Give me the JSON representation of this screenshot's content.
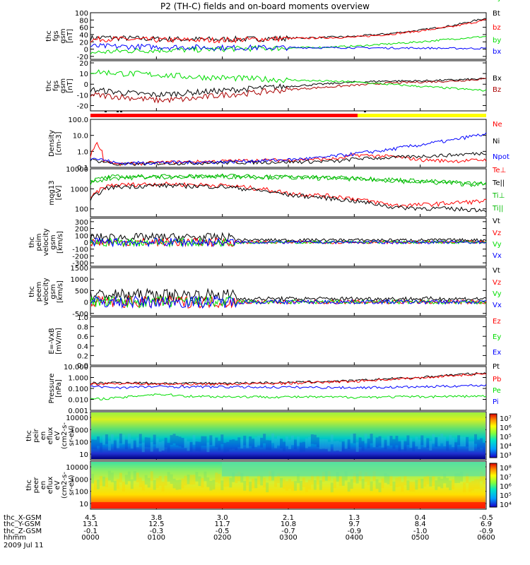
{
  "title": "P2 (TH-C) fields and on-board moments overview",
  "chart_data": [
    {
      "type": "line",
      "panel": "fgs",
      "ylabel": [
        "thc",
        "fgs",
        "gsm",
        "[nT]"
      ],
      "yticks": [
        100,
        80,
        60,
        40,
        20,
        0,
        -20
      ],
      "ylim": [
        -28,
        100
      ],
      "series": [
        {
          "name": "Bt",
          "color": "#000000",
          "x": [
            0,
            0.2,
            0.5,
            1,
            1.5,
            2,
            2.5,
            3,
            3.5,
            4,
            4.5,
            5,
            5.5,
            6
          ],
          "y": [
            30,
            32,
            30,
            28,
            27,
            27,
            28,
            30,
            32,
            35,
            42,
            52,
            65,
            85
          ]
        },
        {
          "name": "bz",
          "color": "#ff0000",
          "x": [
            0,
            0.2,
            0.5,
            1,
            1.5,
            2,
            2.5,
            3,
            3.5,
            4,
            4.5,
            5,
            5.5,
            6
          ],
          "y": [
            25,
            28,
            27,
            25,
            25,
            25,
            27,
            29,
            31,
            33,
            40,
            50,
            62,
            80
          ]
        },
        {
          "name": "by",
          "color": "#00dd00",
          "x": [
            0,
            0.2,
            0.5,
            1,
            1.5,
            2,
            2.5,
            3,
            3.5,
            4,
            4.5,
            5,
            5.5,
            6
          ],
          "y": [
            -10,
            -8,
            -5,
            -3,
            -2,
            0,
            2,
            3,
            5,
            8,
            14,
            20,
            28,
            35
          ]
        },
        {
          "name": "bx",
          "color": "#0000ff",
          "x": [
            0,
            0.5,
            1,
            1.5,
            2,
            2.5,
            3,
            3.5,
            4,
            4.5,
            5,
            5.5,
            6
          ],
          "y": [
            8,
            7,
            6,
            5,
            4,
            4,
            4,
            4,
            4,
            3,
            3,
            2,
            2
          ]
        }
      ]
    },
    {
      "type": "line",
      "panel": "fgs-dsl",
      "ylabel": [
        "thc",
        "fgs",
        "gsm",
        "[nT]"
      ],
      "yticks": [
        20,
        10,
        0,
        -10,
        -20
      ],
      "ylim": [
        -25,
        22
      ],
      "series": [
        {
          "name": "Bx",
          "color": "#000000",
          "x": [
            0,
            0.5,
            1,
            1.5,
            2,
            2.5,
            3,
            3.5,
            4,
            4.5,
            5,
            5.5,
            6
          ],
          "y": [
            -5,
            -8,
            -10,
            -8,
            -6,
            -4,
            -2,
            0,
            2,
            3,
            3,
            4,
            5
          ]
        },
        {
          "name": "Bz",
          "color": "#aa0000",
          "x": [
            0,
            0.5,
            1,
            1.5,
            2,
            2.5,
            3,
            3.5,
            4,
            4.5,
            5,
            5.5,
            6
          ],
          "y": [
            -10,
            -12,
            -15,
            -14,
            -10,
            -8,
            -5,
            -3,
            -1,
            1,
            2,
            3,
            5
          ]
        },
        {
          "name": "By",
          "color": "#00dd00",
          "x": [
            0,
            0.5,
            1,
            1.5,
            2,
            2.5,
            3,
            3.5,
            4,
            4.5,
            5,
            5.5,
            6
          ],
          "y": [
            12,
            10,
            9,
            7,
            6,
            5,
            4,
            3,
            2,
            0,
            -2,
            -4,
            -6
          ]
        }
      ]
    },
    {
      "type": "line",
      "panel": "density",
      "ylabel": [
        "Density",
        "[cm-3]"
      ],
      "yticks": [
        "100.0",
        "10.0",
        "1.0",
        "0.1"
      ],
      "scale": "log",
      "ylim": [
        0.1,
        100
      ],
      "series": [
        {
          "name": "Ne",
          "color": "#ff0000",
          "x": [
            0,
            0.1,
            0.2,
            0.4,
            1,
            2,
            3,
            3.8,
            4,
            4.5,
            5,
            5.5,
            6
          ],
          "y": [
            0.5,
            3,
            0.3,
            0.15,
            0.2,
            0.25,
            0.3,
            0.35,
            0.6,
            0.5,
            0.3,
            0.25,
            0.3
          ]
        },
        {
          "name": "Ni",
          "color": "#000000",
          "x": [
            0,
            0.4,
            1,
            2,
            3,
            3.8,
            4,
            4.5,
            5,
            5.5,
            6
          ],
          "y": [
            0.3,
            0.15,
            0.18,
            0.2,
            0.22,
            0.25,
            0.35,
            0.4,
            0.5,
            0.6,
            0.8
          ]
        },
        {
          "name": "Npot",
          "color": "#0000ff",
          "x": [
            0,
            0.4,
            1,
            2,
            3,
            3.5,
            4,
            4.5,
            5,
            5.5,
            6
          ],
          "y": [
            0.4,
            0.18,
            0.2,
            0.22,
            0.3,
            0.4,
            0.7,
            1.2,
            2.5,
            5,
            12
          ]
        }
      ]
    },
    {
      "type": "line",
      "panel": "temperature",
      "ylabel": [
        "mqg13",
        "[eV]"
      ],
      "yticks": [
        "10000",
        "1000",
        "100"
      ],
      "scale": "log",
      "ylim": [
        40,
        10000
      ],
      "series": [
        {
          "name": "Te⊥",
          "color": "#ff0000",
          "x": [
            0,
            0.3,
            1,
            2,
            2.6,
            3,
            3.8,
            4.2,
            4.6,
            5,
            5.5,
            6
          ],
          "y": [
            300,
            1500,
            1800,
            1500,
            1000,
            600,
            400,
            250,
            150,
            160,
            200,
            250
          ]
        },
        {
          "name": "Te||",
          "color": "#000000",
          "x": [
            0,
            0.3,
            1,
            2,
            2.6,
            3,
            3.8,
            4.2,
            4.6,
            5,
            5.5,
            6
          ],
          "y": [
            250,
            1200,
            1500,
            1300,
            800,
            500,
            300,
            200,
            120,
            110,
            100,
            90
          ]
        },
        {
          "name": "Ti⊥",
          "color": "#00bb00",
          "x": [
            0,
            0.3,
            1,
            2,
            3,
            4,
            5,
            6
          ],
          "y": [
            2500,
            4000,
            4200,
            4500,
            4000,
            3500,
            2500,
            1800
          ]
        },
        {
          "name": "Ti||",
          "color": "#00bb00",
          "x": [
            0,
            0.3,
            1,
            2,
            3,
            4,
            5,
            6
          ],
          "y": [
            2000,
            3500,
            4000,
            4200,
            3800,
            3200,
            2200,
            1600
          ]
        }
      ]
    },
    {
      "type": "line",
      "panel": "peim-velocity",
      "ylabel": [
        "thc",
        "peim",
        "velocity",
        "gsm",
        "[km/s]"
      ],
      "yticks": [
        300,
        200,
        100,
        0,
        -100,
        -200,
        -300
      ],
      "ylim": [
        -350,
        350
      ],
      "series": [
        {
          "name": "Vt",
          "color": "#000000"
        },
        {
          "name": "Vz",
          "color": "#ff0000"
        },
        {
          "name": "Vy",
          "color": "#00dd00"
        },
        {
          "name": "Vx",
          "color": "#0000ff"
        }
      ]
    },
    {
      "type": "line",
      "panel": "peem-velocity",
      "ylabel": [
        "thc",
        "peem",
        "velocity",
        "gsm",
        "[km/s]"
      ],
      "yticks": [
        1500,
        1000,
        500,
        0,
        -500
      ],
      "ylim": [
        -600,
        1500
      ],
      "series": [
        {
          "name": "Vt",
          "color": "#000000"
        },
        {
          "name": "Vz",
          "color": "#ff0000"
        },
        {
          "name": "Vy",
          "color": "#00dd00"
        },
        {
          "name": "Vx",
          "color": "#0000ff"
        }
      ]
    },
    {
      "type": "line",
      "panel": "efield",
      "ylabel": [
        "E=-VxB",
        "[mV/m]"
      ],
      "yticks": [
        "1.0",
        "0.8",
        "0.6",
        "0.4",
        "0.2",
        "0.0"
      ],
      "ylim": [
        0,
        1
      ],
      "series": [
        {
          "name": "Ez",
          "color": "#ff0000"
        },
        {
          "name": "Ey",
          "color": "#00dd00"
        },
        {
          "name": "Ex",
          "color": "#0000ff"
        }
      ]
    },
    {
      "type": "line",
      "panel": "pressure",
      "ylabel": [
        "Pressure",
        "[nPa]"
      ],
      "yticks": [
        "10.000",
        "1.000",
        "0.100",
        "0.010",
        "0.001"
      ],
      "scale": "log",
      "ylim": [
        0.001,
        10
      ],
      "series": [
        {
          "name": "Pt",
          "color": "#000000",
          "x": [
            0,
            0.5,
            1,
            2,
            3,
            4,
            5,
            6
          ],
          "y": [
            0.3,
            0.35,
            0.3,
            0.3,
            0.35,
            0.5,
            1,
            2.5
          ]
        },
        {
          "name": "Pb",
          "color": "#ff0000",
          "x": [
            0,
            0.5,
            1,
            2,
            3,
            4,
            5,
            6
          ],
          "y": [
            0.25,
            0.3,
            0.25,
            0.25,
            0.3,
            0.45,
            0.9,
            2.2
          ]
        },
        {
          "name": "Pe",
          "color": "#00dd00",
          "x": [
            0,
            0.5,
            1,
            1.5,
            2,
            3,
            4,
            5,
            6
          ],
          "y": [
            0.01,
            0.015,
            0.03,
            0.02,
            0.018,
            0.017,
            0.016,
            0.018,
            0.02
          ]
        },
        {
          "name": "Pi",
          "color": "#0000ff",
          "x": [
            0,
            0.5,
            1,
            2,
            3,
            4,
            5,
            6
          ],
          "y": [
            0.15,
            0.12,
            0.15,
            0.14,
            0.13,
            0.12,
            0.14,
            0.2
          ]
        }
      ]
    },
    {
      "type": "heatmap",
      "panel": "peir",
      "ylabel": [
        "thc",
        "peir",
        "en",
        "eflux",
        "eV",
        "(cm2-s-",
        "sr-eV)"
      ],
      "yticks": [
        "10000",
        "1000",
        "100",
        "10"
      ],
      "scale": "log",
      "colorbar_ticks": [
        "10⁷",
        "10⁶",
        "10⁵",
        "10⁴",
        "10³"
      ]
    },
    {
      "type": "heatmap",
      "panel": "peer",
      "ylabel": [
        "thc",
        "peer",
        "en",
        "eflux",
        "eV",
        "(cm2-s-",
        "sr-eV)"
      ],
      "yticks": [
        "10000",
        "1000",
        "100",
        "10"
      ],
      "scale": "log",
      "colorbar_ticks": [
        "10⁸",
        "10⁷",
        "10⁶",
        "10⁵",
        "10⁴"
      ]
    }
  ],
  "xaxis": {
    "rows": [
      {
        "label": "thc_X-GSM",
        "values": [
          "4.5",
          "3.8",
          "3.0",
          "2.1",
          "1.3",
          "0.4",
          "-0.5"
        ]
      },
      {
        "label": "thc_Y-GSM",
        "values": [
          "13.1",
          "12.5",
          "11.7",
          "10.8",
          "9.7",
          "8.4",
          "6.9"
        ]
      },
      {
        "label": "thc_Z-GSM",
        "values": [
          "-0.1",
          "-0.3",
          "-0.5",
          "-0.7",
          "-0.9",
          "-1.0",
          "-0.9"
        ]
      },
      {
        "label": "hhmm",
        "values": [
          "0000",
          "0100",
          "0200",
          "0300",
          "0400",
          "0500",
          "0600"
        ]
      }
    ],
    "date": "2009 Jul 11"
  },
  "colors": {
    "red": "#ff0000",
    "green": "#00dd00",
    "blue": "#0000ff",
    "black": "#000000",
    "yellow": "#ffff00"
  },
  "mode_bar": {
    "switch_fraction": 0.675
  }
}
